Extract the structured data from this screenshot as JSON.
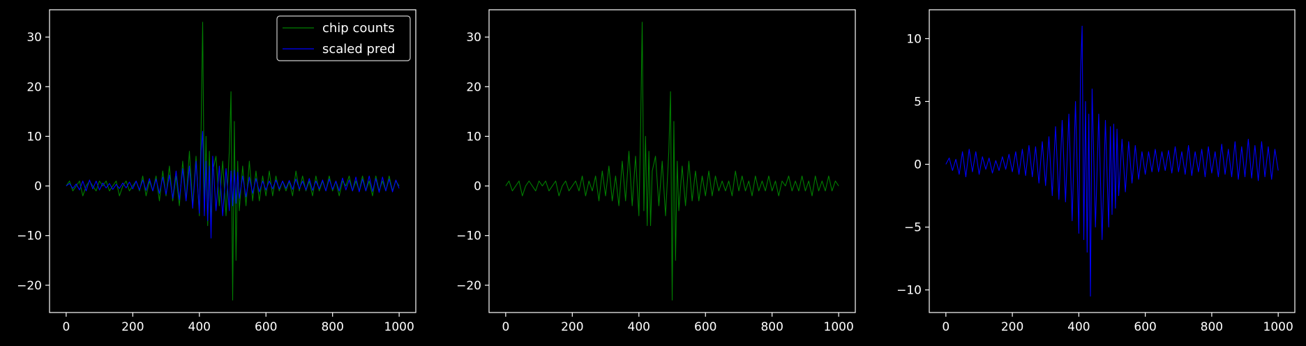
{
  "colors": {
    "background": "#000000",
    "axes": "#ffffff",
    "chip_counts": "#008000",
    "scaled_pred": "#0000ff"
  },
  "chart_data": [
    {
      "type": "line",
      "xlim": [
        -50,
        1050
      ],
      "ylim": [
        -25.5,
        35.5
      ],
      "xticks": [
        0,
        200,
        400,
        600,
        800,
        1000
      ],
      "yticks": [
        -20,
        -10,
        0,
        10,
        20,
        30
      ],
      "legend": {
        "placement": "top-right",
        "entries": [
          "chip counts",
          "scaled pred"
        ]
      },
      "series": [
        {
          "name": "chip counts",
          "color": "#008000",
          "x": [
            0,
            10,
            20,
            30,
            40,
            50,
            60,
            70,
            80,
            90,
            100,
            110,
            120,
            130,
            140,
            150,
            160,
            170,
            180,
            190,
            200,
            210,
            220,
            230,
            240,
            250,
            260,
            270,
            280,
            290,
            300,
            310,
            320,
            330,
            340,
            350,
            360,
            370,
            380,
            390,
            400,
            405,
            410,
            415,
            420,
            425,
            430,
            435,
            440,
            450,
            460,
            470,
            480,
            490,
            495,
            500,
            505,
            510,
            515,
            520,
            530,
            540,
            550,
            560,
            570,
            580,
            590,
            600,
            610,
            620,
            630,
            640,
            650,
            660,
            670,
            680,
            690,
            700,
            710,
            720,
            730,
            740,
            750,
            760,
            770,
            780,
            790,
            800,
            810,
            820,
            830,
            840,
            850,
            860,
            870,
            880,
            890,
            900,
            910,
            920,
            930,
            940,
            950,
            960,
            970,
            980,
            990,
            1000
          ],
          "values": [
            0,
            1,
            -1,
            0,
            1,
            -2,
            0,
            1,
            0,
            -1,
            1,
            0,
            1,
            -1,
            0,
            1,
            -2,
            0,
            1,
            -1,
            0,
            1,
            -1,
            2,
            -2,
            1,
            -1,
            2,
            -3,
            3,
            -2,
            4,
            -3,
            2,
            -4,
            5,
            -3,
            7,
            -4,
            6,
            -6,
            11,
            33,
            -5,
            10,
            -8,
            7,
            -8,
            3,
            6,
            -4,
            5,
            -6,
            7,
            19,
            -23,
            13,
            -15,
            5,
            -5,
            4,
            -4,
            5,
            -3,
            3,
            -3,
            2,
            -2,
            3,
            -2,
            2,
            -1,
            1,
            -1,
            1,
            -2,
            3,
            -1,
            2,
            -1,
            1,
            -2,
            2,
            -1,
            1,
            -1,
            2,
            -1,
            1,
            -2,
            1,
            0,
            2,
            -1,
            1,
            -1,
            2,
            -1,
            1,
            -2,
            2,
            -1,
            1,
            -1,
            2,
            -1,
            1,
            0
          ]
        },
        {
          "name": "scaled pred",
          "color": "#0000ff",
          "x": [
            0,
            10,
            20,
            30,
            40,
            50,
            60,
            70,
            80,
            90,
            100,
            110,
            120,
            130,
            140,
            150,
            160,
            170,
            180,
            190,
            200,
            210,
            220,
            230,
            240,
            250,
            260,
            270,
            280,
            290,
            300,
            310,
            320,
            330,
            340,
            350,
            360,
            370,
            380,
            390,
            400,
            405,
            410,
            415,
            420,
            425,
            430,
            435,
            440,
            450,
            460,
            470,
            480,
            490,
            495,
            500,
            505,
            510,
            515,
            520,
            530,
            540,
            550,
            560,
            570,
            580,
            590,
            600,
            610,
            620,
            630,
            640,
            650,
            660,
            670,
            680,
            690,
            700,
            710,
            720,
            730,
            740,
            750,
            760,
            770,
            780,
            790,
            800,
            810,
            820,
            830,
            840,
            850,
            860,
            870,
            880,
            890,
            900,
            910,
            920,
            930,
            940,
            950,
            960,
            970,
            980,
            990,
            1000
          ],
          "values": [
            0,
            0.5,
            -0.5,
            0.4,
            -0.8,
            1,
            -1,
            1.2,
            -0.6,
            1,
            -0.8,
            0.6,
            -0.4,
            0.5,
            -0.7,
            0.3,
            -0.5,
            0.6,
            -0.4,
            0.8,
            -0.6,
            1,
            -0.8,
            1.2,
            -0.9,
            1.5,
            -1,
            1.4,
            -1.5,
            1.8,
            -1.7,
            2.2,
            -2.5,
            3,
            -2.8,
            3.5,
            -3,
            4,
            -4.5,
            5,
            -5.5,
            7,
            11,
            -6,
            5,
            -7,
            4,
            -10.5,
            6,
            -5,
            4,
            -6,
            3.5,
            -5,
            3,
            -4,
            3.2,
            -3.5,
            2.8,
            -2.5,
            2,
            -2.2,
            1.8,
            -1.5,
            1.5,
            -1.2,
            1,
            -0.8,
            1,
            -0.6,
            1.2,
            -0.6,
            1,
            -0.5,
            1.1,
            -0.7,
            1.4,
            -0.6,
            1,
            -0.8,
            1.5,
            -0.9,
            1,
            -0.6,
            1.2,
            -1,
            1.4,
            -0.7,
            1,
            -1,
            1.6,
            -0.8,
            1.2,
            -1,
            1.8,
            -1.2,
            1.4,
            -1,
            2,
            -1.1,
            1.5,
            -1.3,
            1.8,
            -1,
            1.4,
            -1.2,
            1.2,
            -0.5
          ]
        }
      ]
    },
    {
      "type": "line",
      "xlim": [
        -50,
        1050
      ],
      "ylim": [
        -25.5,
        35.5
      ],
      "xticks": [
        0,
        200,
        400,
        600,
        800,
        1000
      ],
      "yticks": [
        -20,
        -10,
        0,
        10,
        20,
        30
      ],
      "series": [
        {
          "color": "#008000",
          "x": [
            0,
            10,
            20,
            30,
            40,
            50,
            60,
            70,
            80,
            90,
            100,
            110,
            120,
            130,
            140,
            150,
            160,
            170,
            180,
            190,
            200,
            210,
            220,
            230,
            240,
            250,
            260,
            270,
            280,
            290,
            300,
            310,
            320,
            330,
            340,
            350,
            360,
            370,
            380,
            390,
            400,
            405,
            410,
            415,
            420,
            425,
            430,
            435,
            440,
            450,
            460,
            470,
            480,
            490,
            495,
            500,
            505,
            510,
            515,
            520,
            530,
            540,
            550,
            560,
            570,
            580,
            590,
            600,
            610,
            620,
            630,
            640,
            650,
            660,
            670,
            680,
            690,
            700,
            710,
            720,
            730,
            740,
            750,
            760,
            770,
            780,
            790,
            800,
            810,
            820,
            830,
            840,
            850,
            860,
            870,
            880,
            890,
            900,
            910,
            920,
            930,
            940,
            950,
            960,
            970,
            980,
            990,
            1000
          ],
          "values": [
            0,
            1,
            -1,
            0,
            1,
            -2,
            0,
            1,
            0,
            -1,
            1,
            0,
            1,
            -1,
            0,
            1,
            -2,
            0,
            1,
            -1,
            0,
            1,
            -1,
            2,
            -2,
            1,
            -1,
            2,
            -3,
            3,
            -2,
            4,
            -3,
            2,
            -4,
            5,
            -3,
            7,
            -4,
            6,
            -6,
            11,
            33,
            -5,
            10,
            -8,
            7,
            -8,
            3,
            6,
            -4,
            5,
            -6,
            7,
            19,
            -23,
            13,
            -15,
            5,
            -5,
            4,
            -4,
            5,
            -3,
            3,
            -3,
            2,
            -2,
            3,
            -2,
            2,
            -1,
            1,
            -1,
            1,
            -2,
            3,
            -1,
            2,
            -1,
            1,
            -2,
            2,
            -1,
            1,
            -1,
            2,
            -1,
            1,
            -2,
            1,
            0,
            2,
            -1,
            1,
            -1,
            2,
            -1,
            1,
            -2,
            2,
            -1,
            1,
            -1,
            2,
            -1,
            1,
            0
          ]
        }
      ]
    },
    {
      "type": "line",
      "xlim": [
        -50,
        1050
      ],
      "ylim": [
        -11.8,
        12.3
      ],
      "xticks": [
        0,
        200,
        400,
        600,
        800,
        1000
      ],
      "yticks": [
        -10,
        -5,
        0,
        5,
        10
      ],
      "series": [
        {
          "color": "#0000ff",
          "x": [
            0,
            10,
            20,
            30,
            40,
            50,
            60,
            70,
            80,
            90,
            100,
            110,
            120,
            130,
            140,
            150,
            160,
            170,
            180,
            190,
            200,
            210,
            220,
            230,
            240,
            250,
            260,
            270,
            280,
            290,
            300,
            310,
            320,
            330,
            340,
            350,
            360,
            370,
            380,
            390,
            400,
            405,
            410,
            415,
            420,
            425,
            430,
            435,
            440,
            450,
            460,
            470,
            480,
            490,
            495,
            500,
            505,
            510,
            515,
            520,
            530,
            540,
            550,
            560,
            570,
            580,
            590,
            600,
            610,
            620,
            630,
            640,
            650,
            660,
            670,
            680,
            690,
            700,
            710,
            720,
            730,
            740,
            750,
            760,
            770,
            780,
            790,
            800,
            810,
            820,
            830,
            840,
            850,
            860,
            870,
            880,
            890,
            900,
            910,
            920,
            930,
            940,
            950,
            960,
            970,
            980,
            990,
            1000
          ],
          "values": [
            0,
            0.5,
            -0.5,
            0.4,
            -0.8,
            1,
            -1,
            1.2,
            -0.6,
            1,
            -0.8,
            0.6,
            -0.4,
            0.5,
            -0.7,
            0.3,
            -0.5,
            0.6,
            -0.4,
            0.8,
            -0.6,
            1,
            -0.8,
            1.2,
            -0.9,
            1.5,
            -1,
            1.4,
            -1.5,
            1.8,
            -1.7,
            2.2,
            -2.5,
            3,
            -2.8,
            3.5,
            -3,
            4,
            -4.5,
            5,
            -5.5,
            7,
            11,
            -6,
            5,
            -7,
            4,
            -10.5,
            6,
            -5,
            4,
            -6,
            3.5,
            -5,
            3,
            -4,
            3.2,
            -3.5,
            2.8,
            -2.5,
            2,
            -2.2,
            1.8,
            -1.5,
            1.5,
            -1.2,
            1,
            -0.8,
            1,
            -0.6,
            1.2,
            -0.6,
            1,
            -0.5,
            1.1,
            -0.7,
            1.4,
            -0.6,
            1,
            -0.8,
            1.5,
            -0.9,
            1,
            -0.6,
            1.2,
            -1,
            1.4,
            -0.7,
            1,
            -1,
            1.6,
            -0.8,
            1.2,
            -1,
            1.8,
            -1.2,
            1.4,
            -1,
            2,
            -1.1,
            1.5,
            -1.3,
            1.8,
            -1,
            1.4,
            -1.2,
            1.2,
            -0.5
          ]
        }
      ]
    }
  ]
}
